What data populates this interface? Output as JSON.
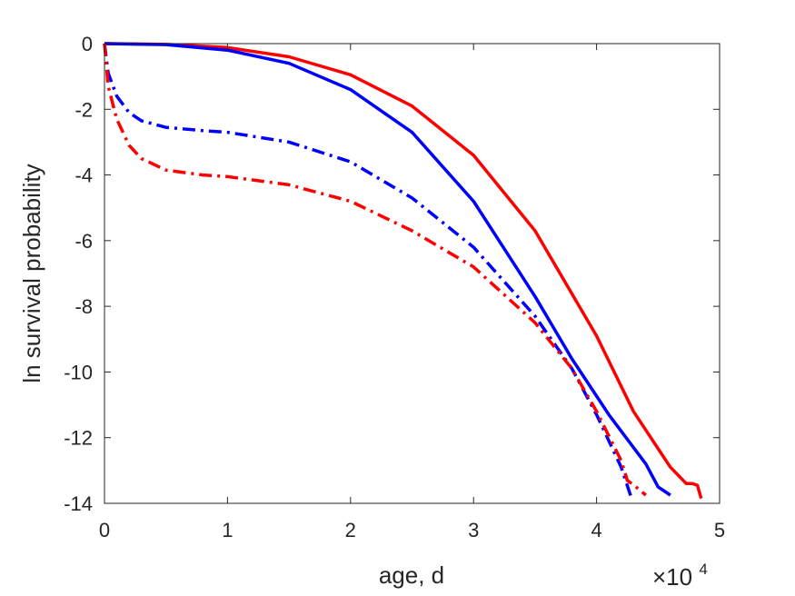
{
  "chart_data": {
    "type": "line",
    "title": "",
    "xlabel": "age, d",
    "ylabel": "ln survival probability",
    "x_exponent_label": {
      "base": "×10",
      "exponent": "4"
    },
    "xlim": [
      0,
      50000
    ],
    "ylim": [
      -14,
      0
    ],
    "xticks": [
      0,
      10000,
      20000,
      30000,
      40000,
      50000
    ],
    "xtick_labels": [
      "0",
      "1",
      "2",
      "3",
      "4",
      "5"
    ],
    "yticks": [
      0,
      -2,
      -4,
      -6,
      -8,
      -10,
      -12,
      -14
    ],
    "ytick_labels": [
      "0",
      "-2",
      "-4",
      "-6",
      "-8",
      "-10",
      "-12",
      "-14"
    ],
    "grid": false,
    "box": true,
    "series": [
      {
        "color": "#ff0000",
        "style": "solid",
        "x": [
          0,
          5000,
          10000,
          15000,
          20000,
          25000,
          30000,
          35000,
          40000,
          43000,
          46000,
          47300,
          47800,
          48200,
          48500
        ],
        "y": [
          0,
          -0.02,
          -0.12,
          -0.4,
          -0.95,
          -1.9,
          -3.4,
          -5.7,
          -8.9,
          -11.2,
          -12.9,
          -13.4,
          -13.4,
          -13.45,
          -13.85
        ]
      },
      {
        "color": "#0000ff",
        "style": "solid",
        "x": [
          0,
          5000,
          10000,
          15000,
          20000,
          25000,
          30000,
          35000,
          38000,
          41000,
          44000,
          45000,
          45400,
          46000
        ],
        "y": [
          0,
          -0.03,
          -0.2,
          -0.6,
          -1.4,
          -2.7,
          -4.8,
          -7.7,
          -9.6,
          -11.3,
          -12.8,
          -13.5,
          -13.6,
          -13.75
        ]
      },
      {
        "color": "#0000ff",
        "style": "dashdot",
        "x": [
          0,
          300,
          1000,
          2000,
          3000,
          5000,
          8000,
          10000,
          15000,
          20000,
          25000,
          30000,
          35000,
          38000,
          40000,
          42000,
          42800
        ],
        "y": [
          0,
          -0.9,
          -1.6,
          -2.1,
          -2.35,
          -2.55,
          -2.65,
          -2.7,
          -3.0,
          -3.6,
          -4.7,
          -6.2,
          -8.3,
          -9.9,
          -11.3,
          -12.9,
          -13.8
        ]
      },
      {
        "color": "#ff0000",
        "style": "dashdot",
        "x": [
          0,
          300,
          1000,
          2000,
          3000,
          5000,
          8000,
          10000,
          15000,
          20000,
          25000,
          30000,
          35000,
          38000,
          40000,
          42000,
          42500,
          43200,
          44000
        ],
        "y": [
          0,
          -1.3,
          -2.3,
          -3.1,
          -3.5,
          -3.85,
          -4.0,
          -4.05,
          -4.3,
          -4.8,
          -5.7,
          -6.8,
          -8.5,
          -9.9,
          -11.2,
          -12.7,
          -13.3,
          -13.5,
          -13.75
        ]
      }
    ]
  }
}
